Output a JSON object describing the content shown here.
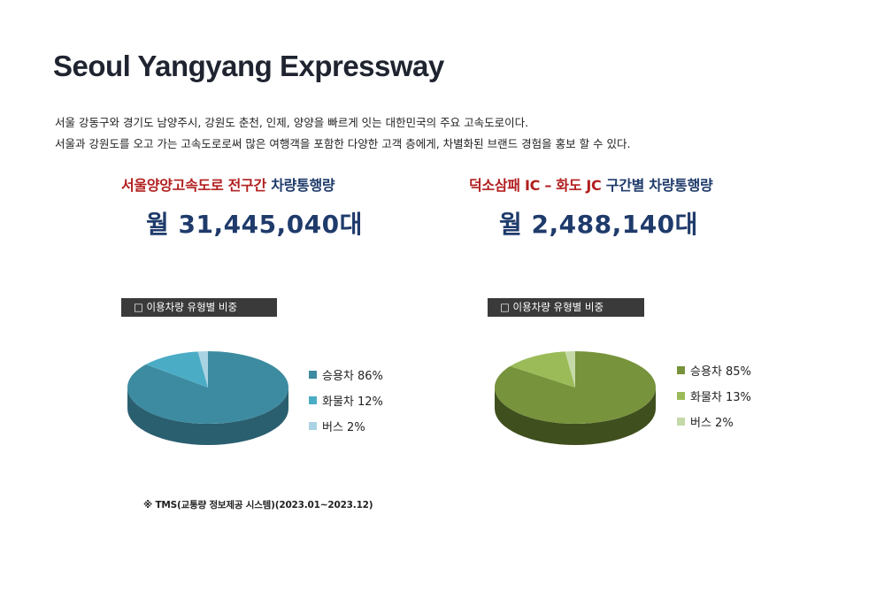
{
  "title": "Seoul Yangyang Expressway",
  "description": [
    "서울 강동구와 경기도 남양주시, 강원도 춘천, 인제, 양양을 빠르게 잇는 대한민국의 주요 고속도로이다.",
    "서울과 강원도를 오고 가는 고속도로로써 많은 여행객을 포함한 다양한 고객 층에게, 차별화된 브랜드 경험을 홍보 할 수 있다."
  ],
  "left": {
    "headline_red": "서울양양고속도로 전구간",
    "headline_navy": "차량통행량",
    "monthly": "월 31,445,040대",
    "chart_label": "□ 이용차량 유형별 비중"
  },
  "right": {
    "headline_red": "덕소삼패 IC – 화도 JC",
    "headline_navy": "구간별 차량통행량",
    "monthly": "월 2,488,140대",
    "chart_label": "□ 이용차량 유형별 비중"
  },
  "source": "※ TMS(교통량 정보제공 시스템)(2023.01~2023.12)",
  "chart_data": [
    {
      "type": "pie",
      "categories": [
        "승용차",
        "화물차",
        "버스"
      ],
      "values": [
        86,
        12,
        2
      ],
      "labels": [
        "승용차 86%",
        "화물차 12%",
        "버스 2%"
      ],
      "colors": [
        "#3d8ba0",
        "#4bacc6",
        "#a9d3e3"
      ],
      "side_colors": [
        "#2a5f70",
        "#337a8d",
        "#7aa7b6"
      ],
      "legend": "right"
    },
    {
      "type": "pie",
      "categories": [
        "승용차",
        "화물차",
        "버스"
      ],
      "values": [
        85,
        13,
        2
      ],
      "labels": [
        "승용차 85%",
        "화물차 13%",
        "버스 2%"
      ],
      "colors": [
        "#77933c",
        "#9bbb59",
        "#c5d9a8"
      ],
      "side_colors": [
        "#3f4f1e",
        "#667c38",
        "#8fa174"
      ],
      "legend": "right"
    }
  ]
}
